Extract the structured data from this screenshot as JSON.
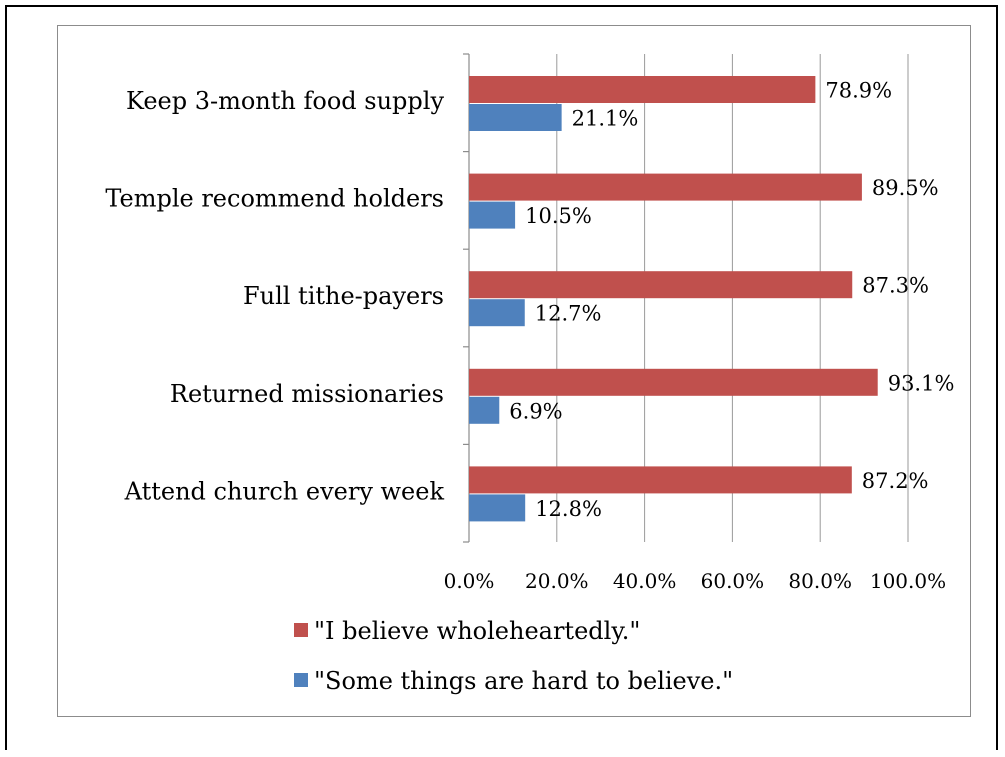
{
  "chart_data": {
    "type": "bar",
    "orientation": "horizontal",
    "categories": [
      "Keep 3-month food supply",
      "Temple recommend holders",
      "Full tithe-payers",
      "Returned missionaries",
      "Attend church every week"
    ],
    "series": [
      {
        "name": "\"I believe wholeheartedly.\"",
        "color": "#c0504d",
        "values": [
          78.9,
          89.5,
          87.3,
          93.1,
          87.2
        ],
        "labels": [
          "78.9%",
          "89.5%",
          "87.3%",
          "93.1%",
          "87.2%"
        ]
      },
      {
        "name": "\"Some things are hard to believe.\"",
        "color": "#4f81bd",
        "values": [
          21.1,
          10.5,
          12.7,
          6.9,
          12.8
        ],
        "labels": [
          "21.1%",
          "10.5%",
          "12.7%",
          "6.9%",
          "12.8%"
        ]
      }
    ],
    "x_ticks": [
      "0.0%",
      "20.0%",
      "40.0%",
      "60.0%",
      "80.0%",
      "100.0%"
    ],
    "xlim": [
      0,
      100
    ],
    "grid": true,
    "legend_position": "bottom",
    "title": "",
    "xlabel": "",
    "ylabel": ""
  }
}
